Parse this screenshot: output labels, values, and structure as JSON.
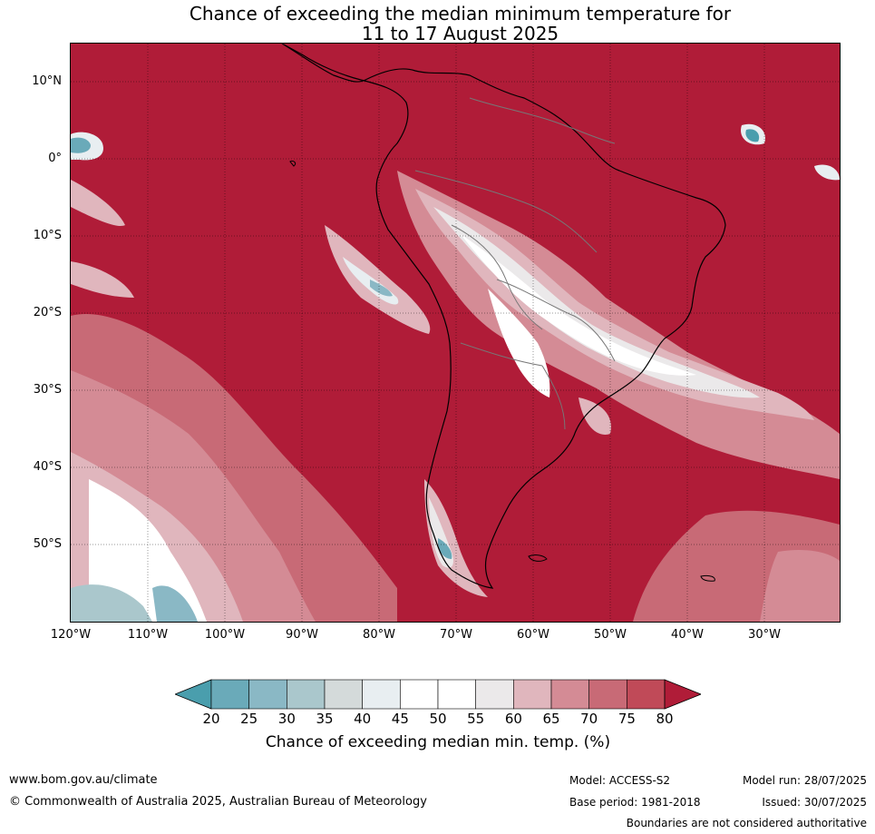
{
  "title": {
    "line1": "Chance of exceeding the median minimum temperature for",
    "line2": "11 to 17 August 2025"
  },
  "map": {
    "lat_labels": [
      "10°N",
      "0°",
      "10°S",
      "20°S",
      "30°S",
      "40°S",
      "50°S"
    ],
    "lon_labels": [
      "120°W",
      "110°W",
      "100°W",
      "90°W",
      "80°W",
      "70°W",
      "60°W",
      "50°W",
      "40°W",
      "30°W"
    ],
    "region": "South America and surrounding oceans",
    "extent": {
      "lon_min": -120,
      "lon_max": -20,
      "lat_min": -60,
      "lat_max": 15
    }
  },
  "colorbar": {
    "ticks": [
      "20",
      "25",
      "30",
      "35",
      "40",
      "45",
      "50",
      "55",
      "60",
      "65",
      "70",
      "75",
      "80"
    ],
    "colors": [
      "#4a9ead",
      "#6aaab9",
      "#8ab8c5",
      "#aac7cc",
      "#d4dada",
      "#e8eef1",
      "#ffffff",
      "#ffffff",
      "#ebe9ea",
      "#e0b6bd",
      "#d48b95",
      "#c86a76",
      "#c04a58",
      "#b01c38"
    ],
    "title": "Chance of exceeding median min. temp. (%)"
  },
  "footer": {
    "website": "www.bom.gov.au/climate",
    "copyright": "© Commonwealth of Australia 2025, Australian Bureau of Meteorology",
    "model": "Model: ACCESS-S2",
    "model_run": "Model run: 28/07/2025",
    "base_period": "Base period: 1981-2018",
    "issued": "Issued: 30/07/2025",
    "disclaimer": "Boundaries are not considered authoritative"
  }
}
